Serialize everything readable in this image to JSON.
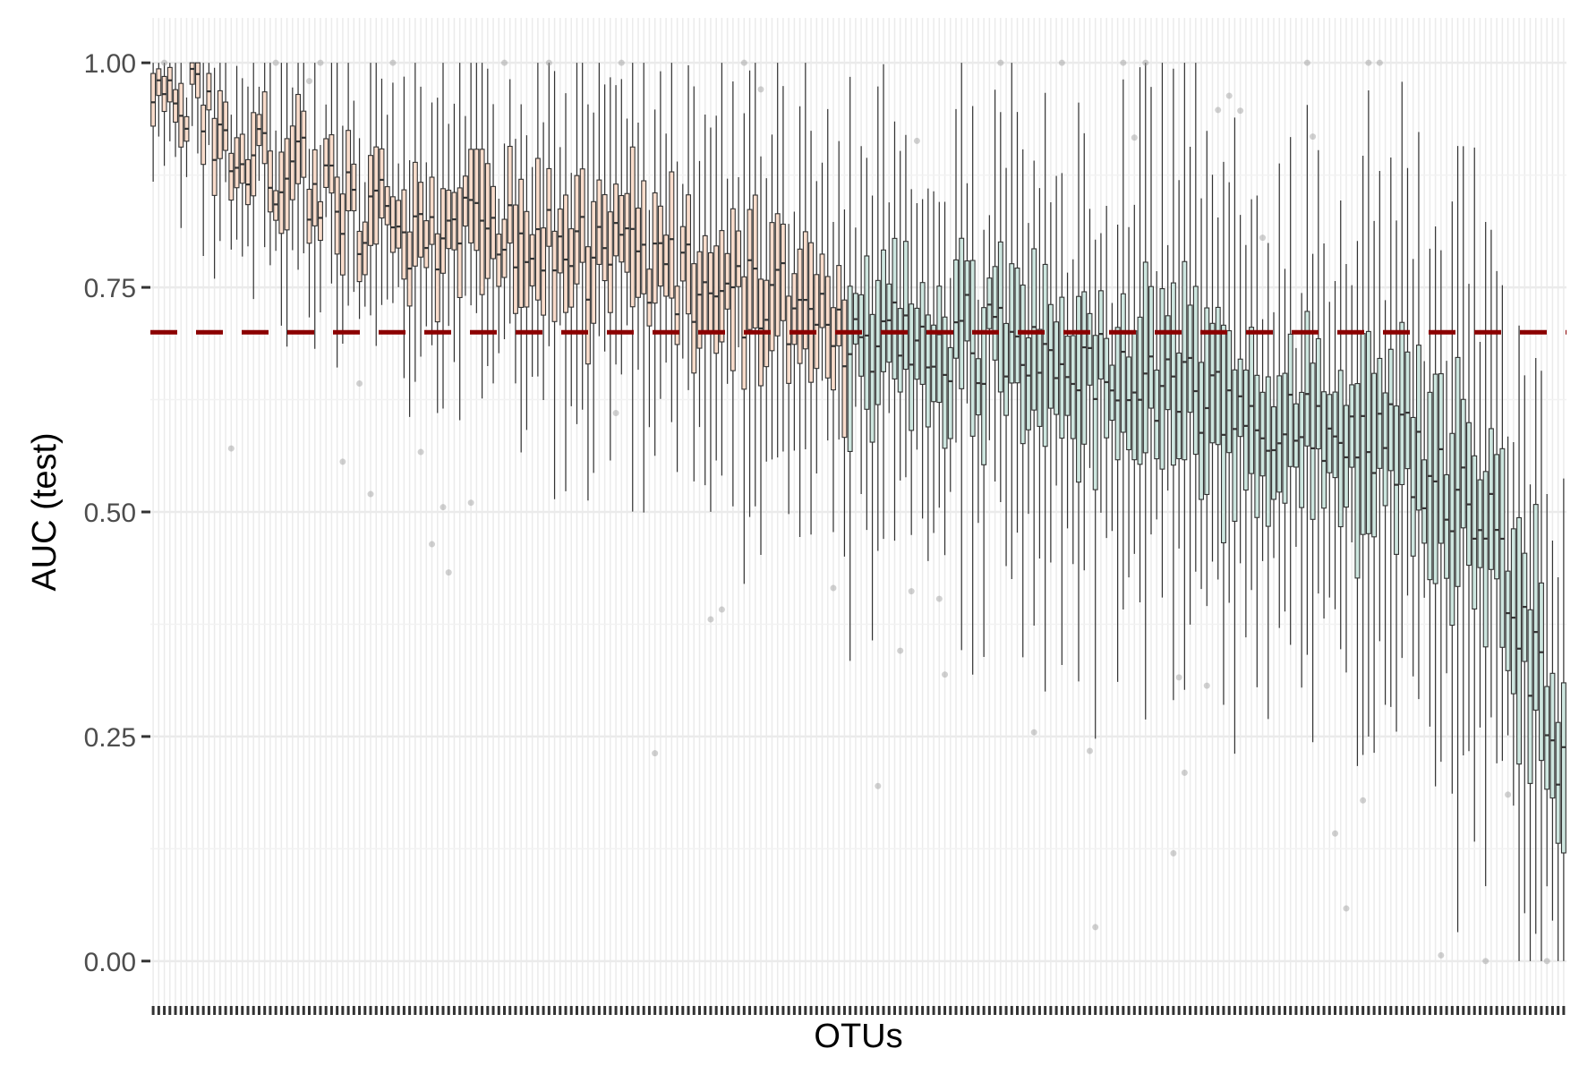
{
  "chart_data": {
    "type": "boxplot",
    "xlabel": "OTUs",
    "ylabel": "AUC (test)",
    "ylim": [
      -0.05,
      1.05
    ],
    "y_ticks": [
      0,
      0.25,
      0.5,
      0.75,
      1
    ],
    "y_tick_labels": [
      "0.00",
      "0.25",
      "0.50",
      "0.75",
      "1.00"
    ],
    "n_categories": 254,
    "x_tick_labels": "none",
    "grid": "on (major and minor)",
    "legend": "none",
    "reference_line": {
      "y": 0.7,
      "style": "dashed",
      "color": "#8b0000"
    },
    "groups": [
      {
        "categories": "1-125",
        "fill": "#f9dccb",
        "description": "AUC median above threshold"
      },
      {
        "categories": "126-254",
        "fill": "#cde6df",
        "description": "AUC median below threshold"
      }
    ],
    "median_trend": [
      {
        "category": 1,
        "median": 0.99
      },
      {
        "category": 10,
        "median": 0.95
      },
      {
        "category": 20,
        "median": 0.9
      },
      {
        "category": 40,
        "median": 0.83
      },
      {
        "category": 60,
        "median": 0.8
      },
      {
        "category": 80,
        "median": 0.78
      },
      {
        "category": 100,
        "median": 0.75
      },
      {
        "category": 125,
        "median": 0.71
      },
      {
        "category": 150,
        "median": 0.69
      },
      {
        "category": 175,
        "median": 0.66
      },
      {
        "category": 200,
        "median": 0.62
      },
      {
        "category": 225,
        "median": 0.57
      },
      {
        "category": 240,
        "median": 0.5
      },
      {
        "category": 254,
        "median": 0.22
      }
    ],
    "spread_trend": [
      {
        "category": 1,
        "iqr": 0.05
      },
      {
        "category": 60,
        "iqr": 0.1
      },
      {
        "category": 125,
        "iqr": 0.12
      },
      {
        "category": 200,
        "iqr": 0.14
      },
      {
        "category": 254,
        "iqr": 0.18
      }
    ]
  }
}
